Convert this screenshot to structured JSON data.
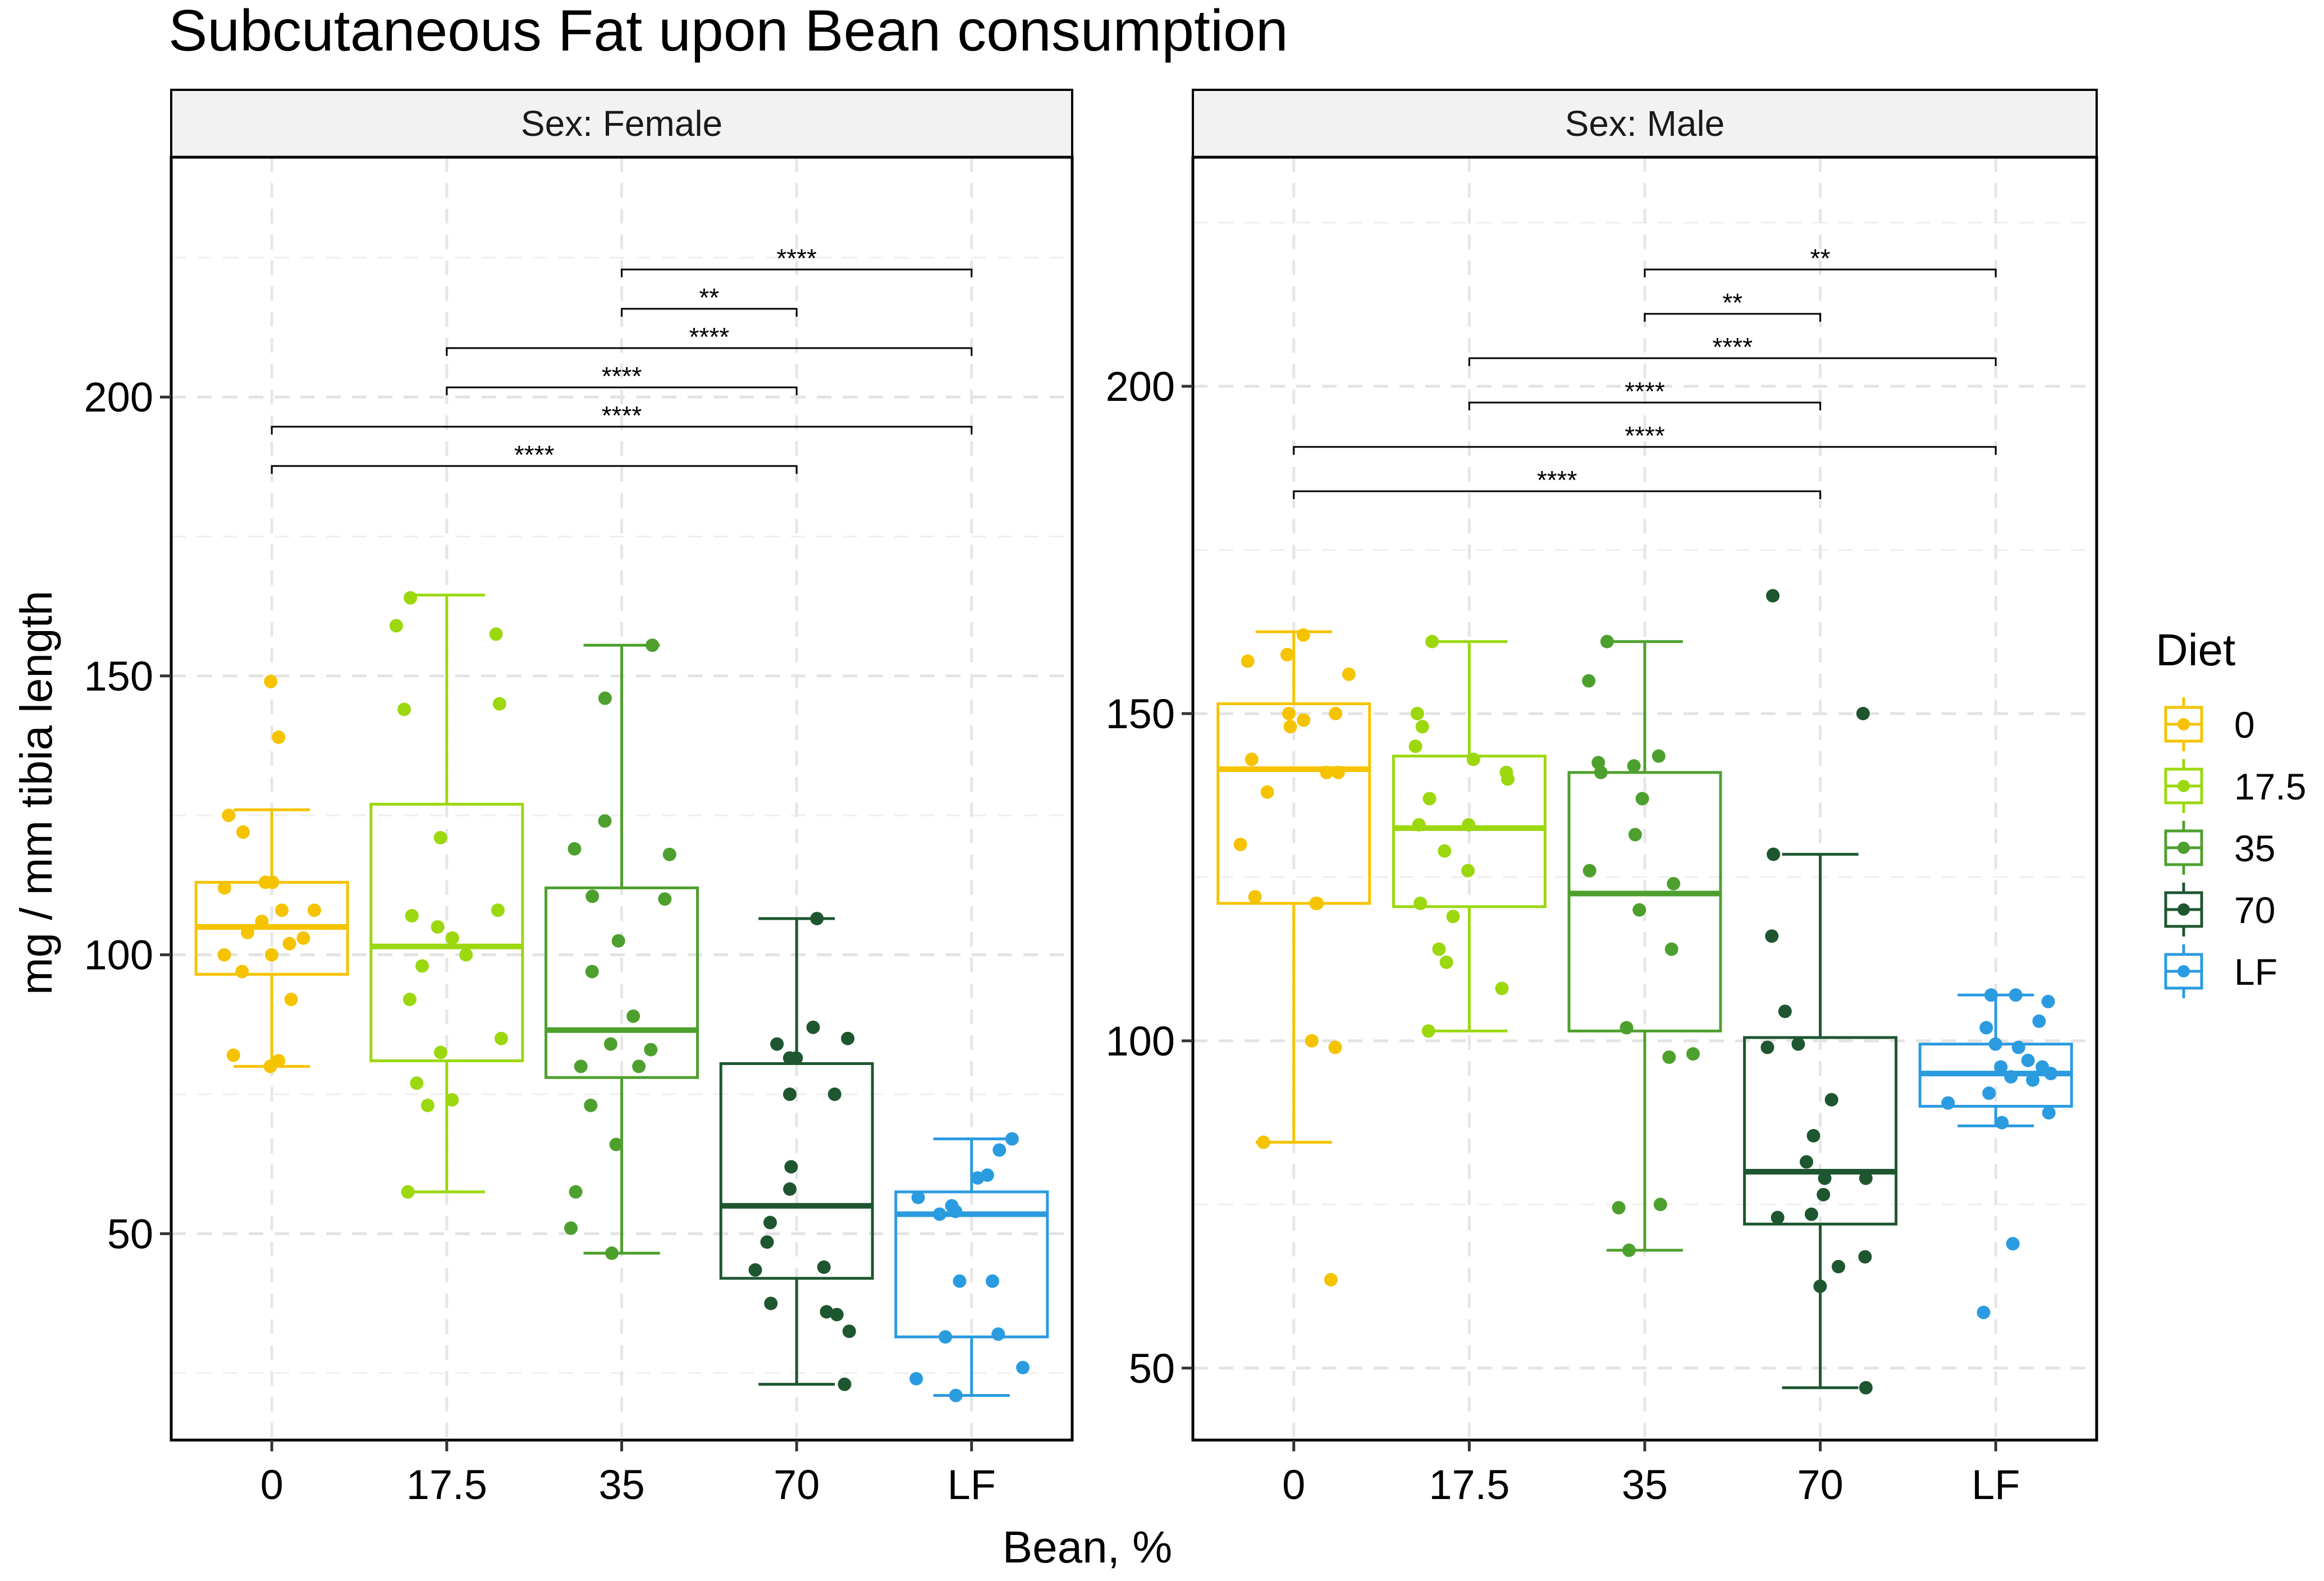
{
  "chart_data": {
    "type": "boxplot",
    "title": "Subcutaneous Fat upon Bean consumption",
    "xlabel": "Bean, %",
    "ylabel": "mg / mm tibia length",
    "categories": [
      "0",
      "17.5",
      "35",
      "70",
      "LF"
    ],
    "legend": {
      "title": "Diet",
      "position": "right",
      "entries": [
        {
          "label": "0",
          "color": "#F5C300"
        },
        {
          "label": "17.5",
          "color": "#9BD80E"
        },
        {
          "label": "35",
          "color": "#4EA02E"
        },
        {
          "label": "70",
          "color": "#1E5630"
        },
        {
          "label": "LF",
          "color": "#2B9BE0"
        }
      ]
    },
    "grid": true,
    "facets": [
      {
        "label": "Sex: Female",
        "ylim": [
          13,
          243
        ],
        "yticks": [
          50,
          100,
          150,
          200
        ],
        "boxes": [
          {
            "category": "0",
            "min": 80,
            "q1": 96.5,
            "median": 105,
            "q3": 113,
            "max": 126
          },
          {
            "category": "17.5",
            "min": 57.5,
            "q1": 81,
            "median": 101.5,
            "q3": 127,
            "max": 164.5
          },
          {
            "category": "35",
            "min": 46.5,
            "q1": 78,
            "median": 86.5,
            "q3": 112,
            "max": 155.5
          },
          {
            "category": "70",
            "min": 23,
            "q1": 42,
            "median": 55,
            "q3": 80.5,
            "max": 106.5
          },
          {
            "category": "LF",
            "min": 21,
            "q1": 31.5,
            "median": 53.5,
            "q3": 57.5,
            "max": 67
          }
        ],
        "points": [
          {
            "category": "0",
            "values": [
              149,
              139,
              125,
              122,
              113,
              113,
              112,
              108,
              108,
              106,
              104,
              103,
              102,
              100,
              100,
              97,
              92,
              82,
              81,
              80
            ]
          },
          {
            "category": "17.5",
            "values": [
              164,
              159,
              157.5,
              145,
              144,
              121,
              108,
              107,
              105,
              103,
              100,
              98,
              92,
              85,
              82.5,
              77,
              74,
              73,
              57.5
            ]
          },
          {
            "category": "35",
            "values": [
              155.5,
              146,
              124,
              119,
              118,
              110.5,
              110,
              102.5,
              97,
              89,
              84,
              83,
              80,
              80,
              73,
              66,
              57.5,
              51,
              46.5
            ]
          },
          {
            "category": "70",
            "values": [
              106.5,
              87,
              85,
              84,
              81.5,
              81.5,
              75,
              75,
              62,
              58,
              52,
              48.5,
              44,
              43.5,
              37.5,
              36,
              35.5,
              32.5,
              23
            ]
          },
          {
            "category": "LF",
            "values": [
              67,
              65,
              60.5,
              60,
              56.5,
              55,
              54,
              53.5,
              41.5,
              41.5,
              32,
              31.5,
              26,
              24,
              21
            ]
          }
        ],
        "comparisons": [
          {
            "from": "35",
            "to": "LF",
            "label": "****"
          },
          {
            "from": "35",
            "to": "70",
            "label": "**"
          },
          {
            "from": "17.5",
            "to": "LF",
            "label": "****"
          },
          {
            "from": "17.5",
            "to": "70",
            "label": "****"
          },
          {
            "from": "0",
            "to": "LF",
            "label": "****"
          },
          {
            "from": "0",
            "to": "70",
            "label": "****"
          }
        ]
      },
      {
        "label": "Sex: Male",
        "ylim": [
          39,
          235
        ],
        "yticks": [
          50,
          100,
          150,
          200
        ],
        "boxes": [
          {
            "category": "0",
            "min": 84.5,
            "q1": 121,
            "median": 141.5,
            "q3": 151.5,
            "max": 162.5
          },
          {
            "category": "17.5",
            "min": 101.5,
            "q1": 120.5,
            "median": 132.5,
            "q3": 143.5,
            "max": 161
          },
          {
            "category": "35",
            "min": 68,
            "q1": 101.5,
            "median": 122.5,
            "q3": 141,
            "max": 161
          },
          {
            "category": "70",
            "min": 47,
            "q1": 72,
            "median": 80,
            "q3": 100.5,
            "max": 128.5
          },
          {
            "category": "LF",
            "min": 87,
            "q1": 90,
            "median": 95,
            "q3": 99.5,
            "max": 107
          }
        ],
        "points": [
          {
            "category": "0",
            "values": [
              162,
              159,
              158,
              156,
              150,
              150,
              149,
              148,
              143,
              141,
              141,
              138,
              130,
              122,
              121,
              121,
              100,
              99,
              84.5,
              63.5
            ]
          },
          {
            "category": "17.5",
            "values": [
              161,
              150,
              148,
              145,
              143,
              141,
              140,
              137,
              133,
              133,
              129,
              126,
              121,
              119,
              114,
              112,
              108,
              101.5
            ]
          },
          {
            "category": "35",
            "values": [
              161,
              155,
              143.5,
              142.5,
              142,
              141,
              137,
              131.5,
              126,
              124,
              120,
              114,
              102,
              98,
              97.5,
              75,
              74.5,
              68
            ]
          },
          {
            "category": "70",
            "values": [
              168,
              150,
              128.5,
              116,
              104.5,
              99.5,
              99,
              91,
              85.5,
              81.5,
              79,
              79,
              76.5,
              73.5,
              73,
              67,
              65.5,
              62.5,
              47
            ]
          },
          {
            "category": "LF",
            "values": [
              107,
              107,
              106,
              103,
              102,
              99.5,
              99,
              97,
              96,
              96,
              95,
              94.5,
              94,
              92,
              90.5,
              89,
              87.5,
              69,
              58.5
            ]
          }
        ],
        "comparisons": [
          {
            "from": "35",
            "to": "LF",
            "label": "**"
          },
          {
            "from": "35",
            "to": "70",
            "label": "**"
          },
          {
            "from": "17.5",
            "to": "LF",
            "label": "****"
          },
          {
            "from": "17.5",
            "to": "70",
            "label": "****"
          },
          {
            "from": "0",
            "to": "LF",
            "label": "****"
          },
          {
            "from": "0",
            "to": "70",
            "label": "****"
          }
        ]
      }
    ]
  }
}
